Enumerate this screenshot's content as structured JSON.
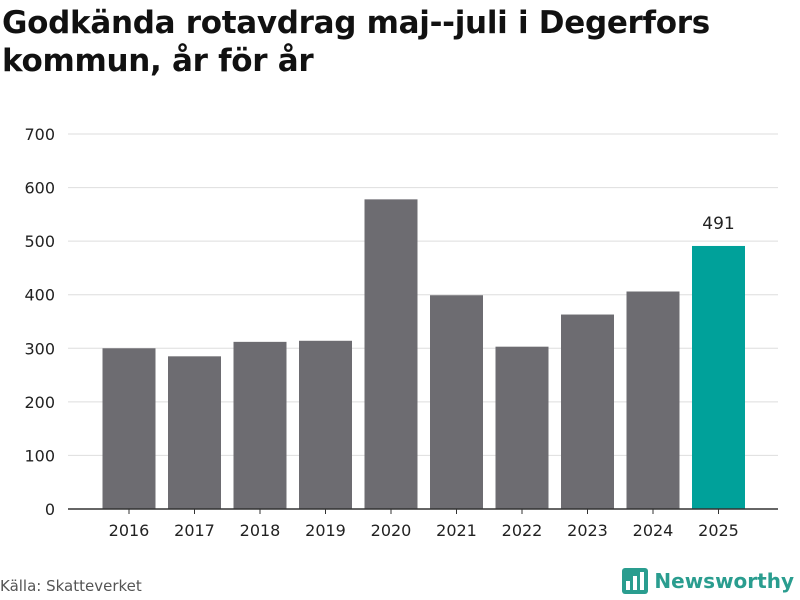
{
  "chart_title": "Godkända rotavdrag maj--juli i Degerfors kommun, år för år",
  "source": "Källa: Skatteverket",
  "brand": {
    "name": "Newsworthy",
    "icon": "newsworthy-logo-icon"
  },
  "colors": {
    "bar": "#6d6c71",
    "highlight": "#00a19a",
    "grid": "#dedede",
    "axis": "#333333",
    "text": "#222222"
  },
  "chart_data": {
    "type": "bar",
    "title": "Godkända rotavdrag maj--juli i Degerfors kommun, år för år",
    "categories": [
      "2016",
      "2017",
      "2018",
      "2019",
      "2020",
      "2021",
      "2022",
      "2023",
      "2024",
      "2025"
    ],
    "values": [
      300,
      285,
      312,
      314,
      578,
      399,
      303,
      363,
      406,
      491
    ],
    "highlight_index": 9,
    "data_labels": [
      {
        "index": 9,
        "text": "491"
      }
    ],
    "y_ticks": [
      "0",
      "100",
      "200",
      "300",
      "400",
      "500",
      "600",
      "700"
    ],
    "ylim": [
      0,
      700
    ],
    "xlabel": "",
    "ylabel": "",
    "grid": true
  }
}
